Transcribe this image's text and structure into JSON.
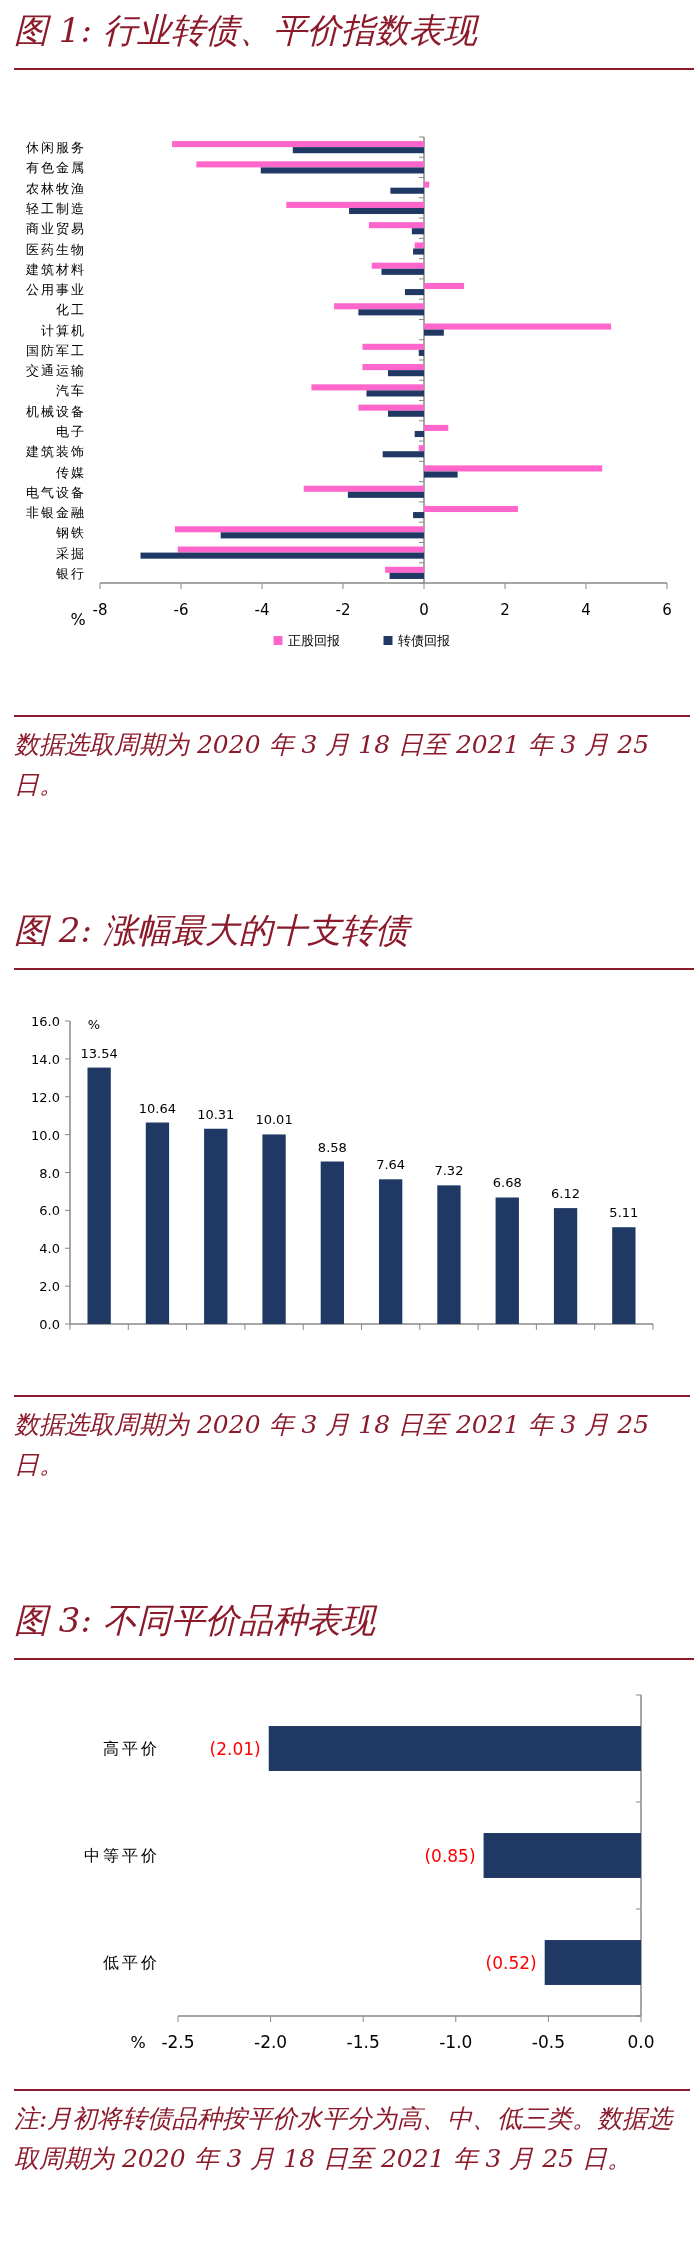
{
  "chart_data": [
    {
      "type": "bar",
      "orientation": "horizontal",
      "title": "图 1: 行业转债、平价指数表现",
      "xlabel": "%",
      "legend": "bottom",
      "categories": [
        "休闲服务",
        "有色金属",
        "农林牧渔",
        "轻工制造",
        "商业贸易",
        "医药生物",
        "建筑材料",
        "公用事业",
        "化工",
        "计算机",
        "国防军工",
        "交通运输",
        "汽车",
        "机械设备",
        "电子",
        "建筑装饰",
        "传媒",
        "电气设备",
        "非银金融",
        "钢铁",
        "采掘",
        "银行"
      ],
      "series": [
        {
          "name": "正股回报",
          "color": "#ff66cc",
          "values": [
            -6.22,
            -5.62,
            0.13,
            -3.4,
            -1.36,
            -0.23,
            -1.29,
            0.99,
            -2.22,
            4.62,
            -1.52,
            -1.52,
            -2.78,
            -1.62,
            0.6,
            -0.13,
            4.4,
            -2.97,
            2.32,
            -6.15,
            -6.08,
            -0.96
          ]
        },
        {
          "name": "转债回报",
          "color": "#1f3864",
          "values": [
            -3.24,
            -4.03,
            -0.83,
            -1.85,
            -0.3,
            -0.27,
            -1.05,
            -0.47,
            -1.62,
            0.49,
            -0.13,
            -0.89,
            -1.42,
            -0.89,
            -0.23,
            -1.02,
            0.83,
            -1.88,
            -0.27,
            -5.02,
            -7.0,
            -0.85
          ]
        }
      ],
      "xlim": [
        -8,
        6
      ],
      "xticks": [
        -8,
        -6,
        -4,
        -2,
        0,
        2,
        4,
        6
      ],
      "annotations": [
        "数据选取周期为 2020 年 3 月 18 日至 2021 年 3 月 25 日。"
      ]
    },
    {
      "type": "bar",
      "title": "图 2: 涨幅最大的十支转债",
      "ylabel": "%",
      "data_labels": true,
      "categories": [
        null,
        null,
        null,
        null,
        null,
        null,
        null,
        null,
        null,
        null
      ],
      "series": [
        {
          "color": "#1f3864",
          "values": [
            13.54,
            10.64,
            10.31,
            10.01,
            8.58,
            7.64,
            7.32,
            6.68,
            6.12,
            5.11
          ]
        }
      ],
      "ylim": [
        0,
        16
      ],
      "yticks": [
        {
          "value": 0,
          "label": "0.0"
        },
        {
          "value": 2,
          "label": "2.0"
        },
        {
          "value": 4,
          "label": "4.0"
        },
        {
          "value": 6,
          "label": "6.0"
        },
        {
          "value": 8,
          "label": "8.0"
        },
        {
          "value": 10,
          "label": "10.0"
        },
        {
          "value": 12,
          "label": "12.0"
        },
        {
          "value": 14,
          "label": "14.0"
        },
        {
          "value": 16,
          "label": "16.0"
        }
      ],
      "annotations": [
        "数据选取周期为 2020 年 3 月 18 日至 2021 年 3 月 25 日。"
      ]
    },
    {
      "type": "bar",
      "orientation": "horizontal",
      "title": "图 3: 不同平价品种表现",
      "xlabel": "%",
      "categories": [
        "高平价",
        "中等平价",
        "低平价"
      ],
      "series": [
        {
          "color": "#1f3864",
          "values": [
            -2.01,
            -0.85,
            -0.52
          ],
          "value_labels": [
            "(2.01)",
            "(0.85)",
            "(0.52)"
          ]
        }
      ],
      "xlim": [
        -2.5,
        0
      ],
      "xticks": [
        {
          "value": -2.5,
          "label": "-2.5"
        },
        {
          "value": -2,
          "label": "-2.0"
        },
        {
          "value": -1.5,
          "label": "-1.5"
        },
        {
          "value": -1,
          "label": "-1.0"
        },
        {
          "value": -0.5,
          "label": "-0.5"
        },
        {
          "value": 0,
          "label": "0.0"
        }
      ],
      "annotations": [
        "注:月初将转债品种按平价水平分为高、中、低三类。数据选取周期为 2020 年 3 月 18 日至 2021 年 3 月 25 日。"
      ]
    }
  ]
}
